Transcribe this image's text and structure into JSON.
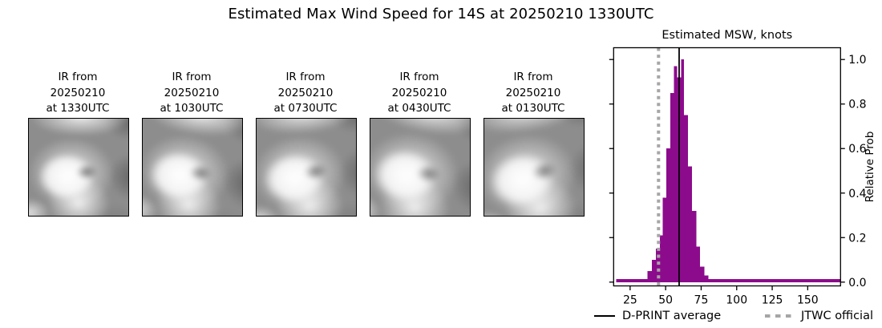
{
  "title": "Estimated Max Wind Speed for 14S at 20250210 1330UTC",
  "panels": [
    {
      "label": "IR from\n20250210\nat 1330UTC"
    },
    {
      "label": "IR from\n20250210\nat 1030UTC"
    },
    {
      "label": "IR from\n20250210\nat 0730UTC"
    },
    {
      "label": "IR from\n20250210\nat 0430UTC"
    },
    {
      "label": "IR from\n20250210\nat 0130UTC"
    }
  ],
  "chart_data": {
    "type": "bar",
    "title": "Estimated MSW, knots",
    "xlabel": "",
    "ylabel": "Relative Prob",
    "xlim": [
      13.4,
      173.1
    ],
    "ylim": [
      -0.017,
      1.053
    ],
    "xticks": [
      25,
      50,
      75,
      100,
      125,
      150
    ],
    "yticks": [
      "0.0",
      "0.2",
      "0.4",
      "0.6",
      "0.8",
      "1.0"
    ],
    "grid": false,
    "bar_color": "#8c0b8c",
    "jtwc_color": "#a6a6a6",
    "dprint_color": "#000000",
    "bins": [
      {
        "x0": 15.3,
        "x1": 37.3,
        "h": 0.013
      },
      {
        "x0": 37.3,
        "x1": 40.2,
        "h": 0.05
      },
      {
        "x0": 40.2,
        "x1": 43.0,
        "h": 0.1
      },
      {
        "x0": 43.0,
        "x1": 45.9,
        "h": 0.15
      },
      {
        "x0": 45.9,
        "x1": 48.0,
        "h": 0.21
      },
      {
        "x0": 48.0,
        "x1": 50.6,
        "h": 0.38
      },
      {
        "x0": 50.6,
        "x1": 53.3,
        "h": 0.6
      },
      {
        "x0": 53.3,
        "x1": 55.9,
        "h": 0.85
      },
      {
        "x0": 55.9,
        "x1": 58.2,
        "h": 0.97
      },
      {
        "x0": 58.2,
        "x1": 60.8,
        "h": 0.92
      },
      {
        "x0": 60.8,
        "x1": 63.0,
        "h": 1.0
      },
      {
        "x0": 63.0,
        "x1": 65.8,
        "h": 0.75
      },
      {
        "x0": 65.8,
        "x1": 68.6,
        "h": 0.52
      },
      {
        "x0": 68.6,
        "x1": 71.5,
        "h": 0.32
      },
      {
        "x0": 71.5,
        "x1": 74.3,
        "h": 0.16
      },
      {
        "x0": 74.3,
        "x1": 77.2,
        "h": 0.07
      },
      {
        "x0": 77.2,
        "x1": 80.1,
        "h": 0.03
      },
      {
        "x0": 80.1,
        "x1": 173.1,
        "h": 0.013
      }
    ],
    "dprint_average": 59.5,
    "jtwc_official": 45,
    "legend": [
      {
        "label": "D-PRINT average",
        "style": "solid-black-line"
      },
      {
        "label": "JTWC official",
        "style": "dotted-gray-line"
      }
    ],
    "legend_position": "below-axes"
  }
}
